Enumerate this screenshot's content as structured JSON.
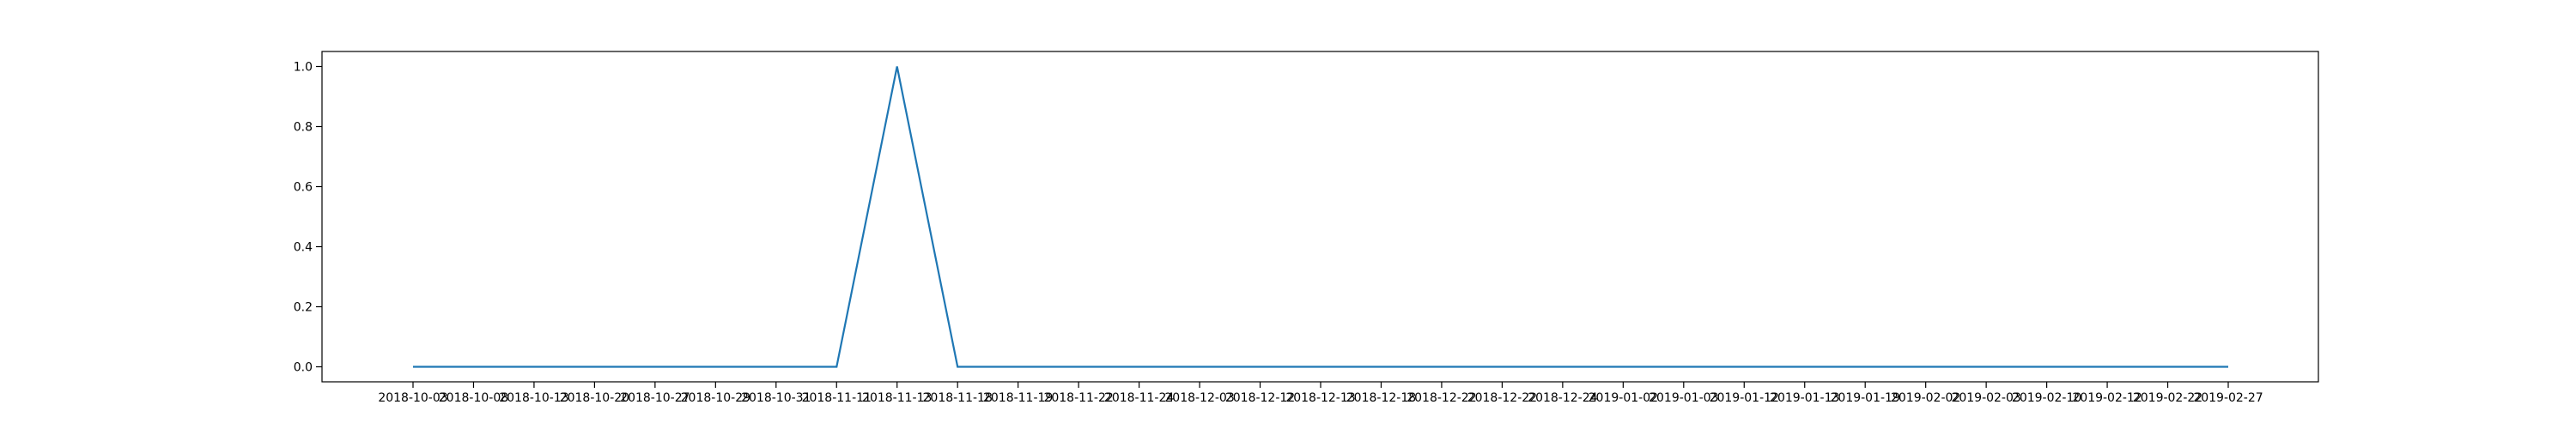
{
  "chart_data": {
    "type": "line",
    "title": "",
    "xlabel": "",
    "ylabel": "",
    "x": [
      "2018-10-03",
      "2018-10-08",
      "2018-10-13",
      "2018-10-20",
      "2018-10-27",
      "2018-10-29",
      "2018-10-31",
      "2018-11-11",
      "2018-11-13",
      "2018-11-18",
      "2018-11-19",
      "2018-11-22",
      "2018-11-24",
      "2018-12-03",
      "2018-12-12",
      "2018-12-13",
      "2018-12-18",
      "2018-12-22",
      "2018-12-22",
      "2018-12-24",
      "2019-01-02",
      "2019-01-03",
      "2019-01-12",
      "2019-01-13",
      "2019-01-19",
      "2019-02-02",
      "2019-02-03",
      "2019-02-10",
      "2019-02-12",
      "2019-02-22",
      "2019-02-27"
    ],
    "xtick_labels": [
      "2018-10-03",
      "2018-10-08",
      "2018-10-13",
      "2018-10-20",
      "2018-10-27",
      "2018-10-29",
      "2018-10-31",
      "2018-11-11",
      "2018-11-13",
      "2018-11-18",
      "2018-11-19",
      "2018-11-22",
      "2018-11-24",
      "2018-12-03",
      "2018-12-12",
      "2018-12-13",
      "2018-12-18",
      "2018-12-22",
      "2018-12-22",
      "2018-12-24",
      "2019-01-02",
      "2019-01-03",
      "2019-01-12",
      "2019-01-13",
      "2019-01-19",
      "2019-02-02",
      "2019-02-03",
      "2019-02-10",
      "2019-02-12",
      "2019-02-22",
      "2019-02-27"
    ],
    "series": [
      {
        "values": [
          0,
          0,
          0,
          0,
          0,
          0,
          0,
          0,
          1,
          0,
          0,
          0,
          0,
          0,
          0,
          0,
          0,
          0,
          0,
          0,
          0,
          0,
          0,
          0,
          0,
          0,
          0,
          0,
          0,
          0,
          0
        ],
        "color": "#1f77b4"
      }
    ],
    "ylim": [
      -0.05,
      1.05
    ],
    "yticks": [
      0.0,
      0.2,
      0.4,
      0.6,
      0.8,
      1.0
    ],
    "ytick_labels": [
      "0.0",
      "0.2",
      "0.4",
      "0.6",
      "0.8",
      "1.0"
    ],
    "grid": false,
    "legend": "none"
  }
}
